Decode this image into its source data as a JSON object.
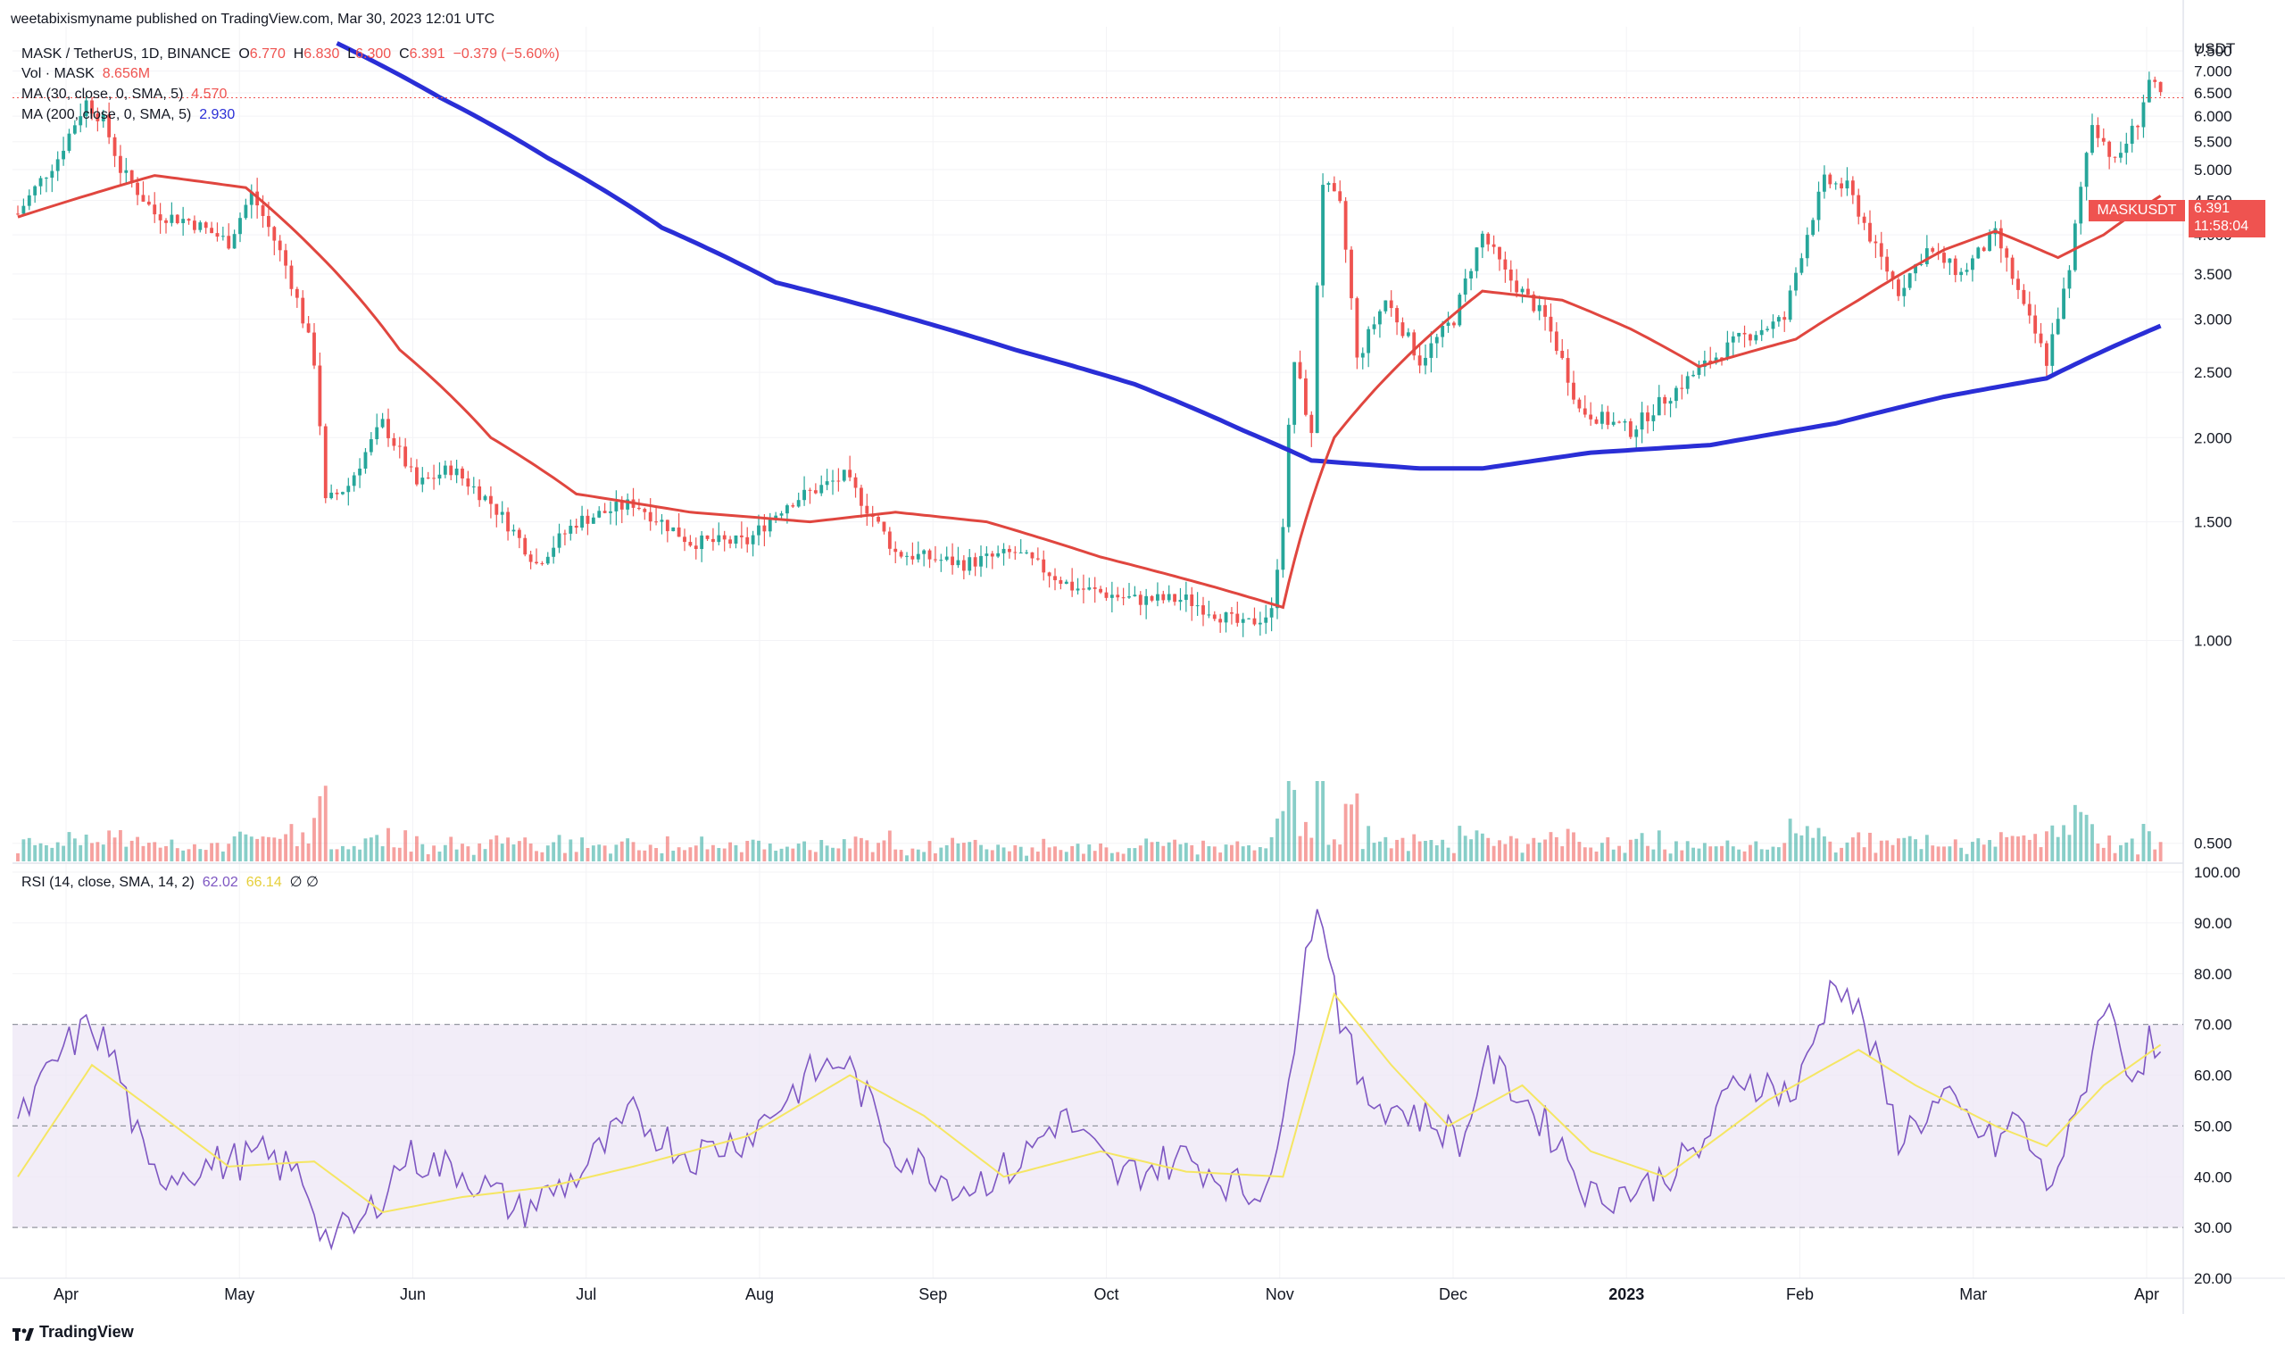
{
  "publisher_line": "weetabixismyname published on TradingView.com, Mar 30, 2023 12:01 UTC",
  "legend": {
    "symbol": "MASK / TetherUS, 1D, BINANCE",
    "o_label": "O",
    "o_value": "6.770",
    "h_label": "H",
    "h_value": "6.830",
    "l_label": "L",
    "l_value": "6.300",
    "c_label": "C",
    "c_value": "6.391",
    "change": "−0.379 (−5.60%)",
    "vol_label": "Vol · MASK",
    "vol_value": "8.656M",
    "ma30_label": "MA (30, close, 0, SMA, 5)",
    "ma30_value": "4.570",
    "ma200_label": "MA (200, close, 0, SMA, 5)",
    "ma200_value": "2.930",
    "rsi_label": "RSI (14, close, SMA, 14, 2)",
    "rsi_value": "62.02",
    "rsi_sma_value": "66.14",
    "rsi_extra": "∅ ∅"
  },
  "price_badge": {
    "symbol": "MASKUSDT",
    "price": "6.391",
    "countdown": "11:58:04"
  },
  "brand": "TradingView",
  "colors": {
    "up": "#26a69a",
    "down": "#ef5350",
    "ma30": "#e0463f",
    "ma200": "#2a2ed6",
    "rsi": "#7e57c2",
    "rsi_sma": "#f5e663",
    "rsi_band": "#ede7f6"
  },
  "chart_data": [
    {
      "type": "candlestick",
      "title": "MASK / TetherUS, 1D, BINANCE",
      "ylabel": "USDT",
      "yscale": "log",
      "yticks": [
        "0.500",
        "1.000",
        "1.500",
        "2.000",
        "2.500",
        "3.000",
        "3.500",
        "4.000",
        "4.500",
        "5.000",
        "5.500",
        "6.000",
        "6.500",
        "7.000",
        "7.500"
      ],
      "xticks": [
        "Apr",
        "May",
        "Jun",
        "Jul",
        "Aug",
        "Sep",
        "Oct",
        "Nov",
        "Dec",
        "2023",
        "Feb",
        "Mar",
        "Apr"
      ],
      "x_start": "2022-03-19",
      "x_end": "2023-03-30",
      "last_price": 6.391,
      "close_anchors": [
        [
          "2022-03-19",
          4.3
        ],
        [
          "2022-03-26",
          5.2
        ],
        [
          "2022-03-31",
          6.3
        ],
        [
          "2022-04-03",
          5.9
        ],
        [
          "2022-04-06",
          5.0
        ],
        [
          "2022-04-12",
          4.3
        ],
        [
          "2022-04-18",
          4.2
        ],
        [
          "2022-04-25",
          3.9
        ],
        [
          "2022-04-29",
          4.6
        ],
        [
          "2022-05-05",
          3.6
        ],
        [
          "2022-05-10",
          2.6
        ],
        [
          "2022-05-12",
          1.6
        ],
        [
          "2022-05-16",
          1.7
        ],
        [
          "2022-05-22",
          2.1
        ],
        [
          "2022-05-28",
          1.7
        ],
        [
          "2022-06-03",
          1.8
        ],
        [
          "2022-06-10",
          1.6
        ],
        [
          "2022-06-18",
          1.3
        ],
        [
          "2022-06-25",
          1.5
        ],
        [
          "2022-07-05",
          1.6
        ],
        [
          "2022-07-15",
          1.4
        ],
        [
          "2022-07-25",
          1.4
        ],
        [
          "2022-08-01",
          1.6
        ],
        [
          "2022-08-11",
          1.75
        ],
        [
          "2022-08-20",
          1.35
        ],
        [
          "2022-09-01",
          1.3
        ],
        [
          "2022-09-10",
          1.35
        ],
        [
          "2022-09-20",
          1.2
        ],
        [
          "2022-10-01",
          1.15
        ],
        [
          "2022-10-10",
          1.15
        ],
        [
          "2022-10-20",
          1.05
        ],
        [
          "2022-10-25",
          1.1
        ],
        [
          "2022-10-27",
          1.5
        ],
        [
          "2022-10-29",
          2.6
        ],
        [
          "2022-11-01",
          2.0
        ],
        [
          "2022-11-03",
          4.8
        ],
        [
          "2022-11-06",
          4.4
        ],
        [
          "2022-11-09",
          2.6
        ],
        [
          "2022-11-14",
          3.2
        ],
        [
          "2022-11-20",
          2.6
        ],
        [
          "2022-11-26",
          3.0
        ],
        [
          "2022-12-01",
          4.0
        ],
        [
          "2022-12-05",
          3.5
        ],
        [
          "2022-12-12",
          3.0
        ],
        [
          "2022-12-18",
          2.2
        ],
        [
          "2022-12-27",
          2.05
        ],
        [
          "2023-01-05",
          2.4
        ],
        [
          "2023-01-15",
          2.8
        ],
        [
          "2023-01-23",
          3.0
        ],
        [
          "2023-01-30",
          4.8
        ],
        [
          "2023-02-03",
          4.7
        ],
        [
          "2023-02-08",
          3.8
        ],
        [
          "2023-02-12",
          3.3
        ],
        [
          "2023-02-17",
          3.8
        ],
        [
          "2023-02-23",
          3.5
        ],
        [
          "2023-03-01",
          4.0
        ],
        [
          "2023-03-06",
          3.1
        ],
        [
          "2023-03-10",
          2.6
        ],
        [
          "2023-03-14",
          3.5
        ],
        [
          "2023-03-18",
          5.9
        ],
        [
          "2023-03-22",
          5.1
        ],
        [
          "2023-03-26",
          5.9
        ],
        [
          "2023-03-28",
          6.77
        ],
        [
          "2023-03-30",
          6.391
        ]
      ],
      "ma30_anchors": [
        [
          "2022-03-19",
          4.25
        ],
        [
          "2022-04-01",
          4.6
        ],
        [
          "2022-04-12",
          4.9
        ],
        [
          "2022-04-28",
          4.7
        ],
        [
          "2022-05-10",
          3.8
        ],
        [
          "2022-05-25",
          2.7
        ],
        [
          "2022-06-10",
          2.0
        ],
        [
          "2022-06-25",
          1.65
        ],
        [
          "2022-07-15",
          1.55
        ],
        [
          "2022-08-05",
          1.5
        ],
        [
          "2022-08-20",
          1.55
        ],
        [
          "2022-09-05",
          1.5
        ],
        [
          "2022-09-25",
          1.33
        ],
        [
          "2022-10-15",
          1.2
        ],
        [
          "2022-10-27",
          1.12
        ],
        [
          "2022-11-05",
          2.0
        ],
        [
          "2022-11-25",
          3.0
        ],
        [
          "2022-12-01",
          3.3
        ],
        [
          "2022-12-15",
          3.2
        ],
        [
          "2022-12-27",
          2.9
        ],
        [
          "2023-01-08",
          2.55
        ],
        [
          "2023-01-25",
          2.8
        ],
        [
          "2023-02-05",
          3.2
        ],
        [
          "2023-02-20",
          3.8
        ],
        [
          "2023-03-01",
          4.05
        ],
        [
          "2023-03-12",
          3.7
        ],
        [
          "2023-03-20",
          4.0
        ],
        [
          "2023-03-30",
          4.57
        ]
      ],
      "ma200_anchors": [
        [
          "2022-05-14",
          7.7
        ],
        [
          "2022-06-01",
          6.4
        ],
        [
          "2022-06-20",
          5.2
        ],
        [
          "2022-07-10",
          4.1
        ],
        [
          "2022-07-30",
          3.4
        ],
        [
          "2022-08-20",
          3.05
        ],
        [
          "2022-09-10",
          2.7
        ],
        [
          "2022-10-01",
          2.4
        ],
        [
          "2022-10-20",
          2.05
        ],
        [
          "2022-11-01",
          1.85
        ],
        [
          "2022-11-20",
          1.8
        ],
        [
          "2022-12-01",
          1.8
        ],
        [
          "2022-12-20",
          1.9
        ],
        [
          "2023-01-10",
          1.95
        ],
        [
          "2023-02-01",
          2.1
        ],
        [
          "2023-02-20",
          2.3
        ],
        [
          "2023-03-10",
          2.45
        ],
        [
          "2023-03-30",
          2.93
        ]
      ],
      "volume_ylabel": "Vol · MASK",
      "volume_last": "8.656M"
    },
    {
      "type": "line",
      "title": "RSI (14, close, SMA, 14, 2)",
      "ylim": [
        20,
        100
      ],
      "yticks": [
        "20.00",
        "30.00",
        "40.00",
        "50.00",
        "60.00",
        "70.00",
        "80.00",
        "90.00",
        "100.00"
      ],
      "band": [
        30,
        70
      ],
      "mid": 50,
      "rsi_anchors": [
        [
          "2022-03-19",
          50
        ],
        [
          "2022-03-27",
          65
        ],
        [
          "2022-04-01",
          70
        ],
        [
          "2022-04-05",
          63
        ],
        [
          "2022-04-11",
          40
        ],
        [
          "2022-04-20",
          42
        ],
        [
          "2022-05-01",
          44
        ],
        [
          "2022-05-08",
          40
        ],
        [
          "2022-05-12",
          28
        ],
        [
          "2022-05-18",
          30
        ],
        [
          "2022-05-26",
          44
        ],
        [
          "2022-06-05",
          41
        ],
        [
          "2022-06-15",
          33
        ],
        [
          "2022-06-25",
          40
        ],
        [
          "2022-07-05",
          52
        ],
        [
          "2022-07-15",
          44
        ],
        [
          "2022-07-25",
          48
        ],
        [
          "2022-08-05",
          60
        ],
        [
          "2022-08-11",
          63
        ],
        [
          "2022-08-20",
          45
        ],
        [
          "2022-09-01",
          38
        ],
        [
          "2022-09-10",
          42
        ],
        [
          "2022-09-18",
          52
        ],
        [
          "2022-09-28",
          40
        ],
        [
          "2022-10-10",
          44
        ],
        [
          "2022-10-22",
          36
        ],
        [
          "2022-10-27",
          48
        ],
        [
          "2022-10-31",
          88
        ],
        [
          "2022-11-03",
          92
        ],
        [
          "2022-11-06",
          72
        ],
        [
          "2022-11-10",
          56
        ],
        [
          "2022-11-20",
          52
        ],
        [
          "2022-11-28",
          47
        ],
        [
          "2022-12-01",
          63
        ],
        [
          "2022-12-07",
          57
        ],
        [
          "2022-12-15",
          46
        ],
        [
          "2022-12-20",
          36
        ],
        [
          "2022-12-30",
          38
        ],
        [
          "2023-01-08",
          45
        ],
        [
          "2023-01-15",
          60
        ],
        [
          "2023-01-25",
          56
        ],
        [
          "2023-02-01",
          80
        ],
        [
          "2023-02-06",
          70
        ],
        [
          "2023-02-12",
          48
        ],
        [
          "2023-02-20",
          55
        ],
        [
          "2023-03-01",
          46
        ],
        [
          "2023-03-05",
          52
        ],
        [
          "2023-03-10",
          38
        ],
        [
          "2023-03-15",
          50
        ],
        [
          "2023-03-20",
          75
        ],
        [
          "2023-03-25",
          60
        ],
        [
          "2023-03-28",
          66
        ],
        [
          "2023-03-30",
          62
        ]
      ],
      "rsi_sma_anchors": [
        [
          "2022-03-19",
          40
        ],
        [
          "2022-04-01",
          62
        ],
        [
          "2022-04-12",
          53
        ],
        [
          "2022-04-25",
          42
        ],
        [
          "2022-05-10",
          43
        ],
        [
          "2022-05-22",
          33
        ],
        [
          "2022-06-05",
          36
        ],
        [
          "2022-06-20",
          38
        ],
        [
          "2022-07-05",
          42
        ],
        [
          "2022-07-25",
          48
        ],
        [
          "2022-08-12",
          60
        ],
        [
          "2022-08-25",
          52
        ],
        [
          "2022-09-08",
          40
        ],
        [
          "2022-09-25",
          45
        ],
        [
          "2022-10-10",
          41
        ],
        [
          "2022-10-27",
          40
        ],
        [
          "2022-11-05",
          76
        ],
        [
          "2022-11-15",
          62
        ],
        [
          "2022-11-25",
          50
        ],
        [
          "2022-12-08",
          58
        ],
        [
          "2022-12-20",
          45
        ],
        [
          "2023-01-02",
          40
        ],
        [
          "2023-01-20",
          55
        ],
        [
          "2023-02-05",
          65
        ],
        [
          "2023-02-15",
          58
        ],
        [
          "2023-03-01",
          50
        ],
        [
          "2023-03-10",
          46
        ],
        [
          "2023-03-20",
          58
        ],
        [
          "2023-03-30",
          66
        ]
      ]
    }
  ]
}
